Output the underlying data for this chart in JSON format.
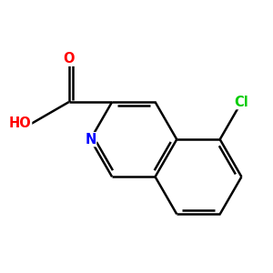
{
  "bond_color": "#000000",
  "bond_width": 1.8,
  "atom_colors": {
    "O": "#ff0000",
    "N": "#0000ff",
    "Cl": "#00cc00",
    "C": "#000000"
  },
  "background": "#ffffff",
  "figsize": [
    3.0,
    3.0
  ],
  "dpi": 100,
  "BL": 1.0
}
